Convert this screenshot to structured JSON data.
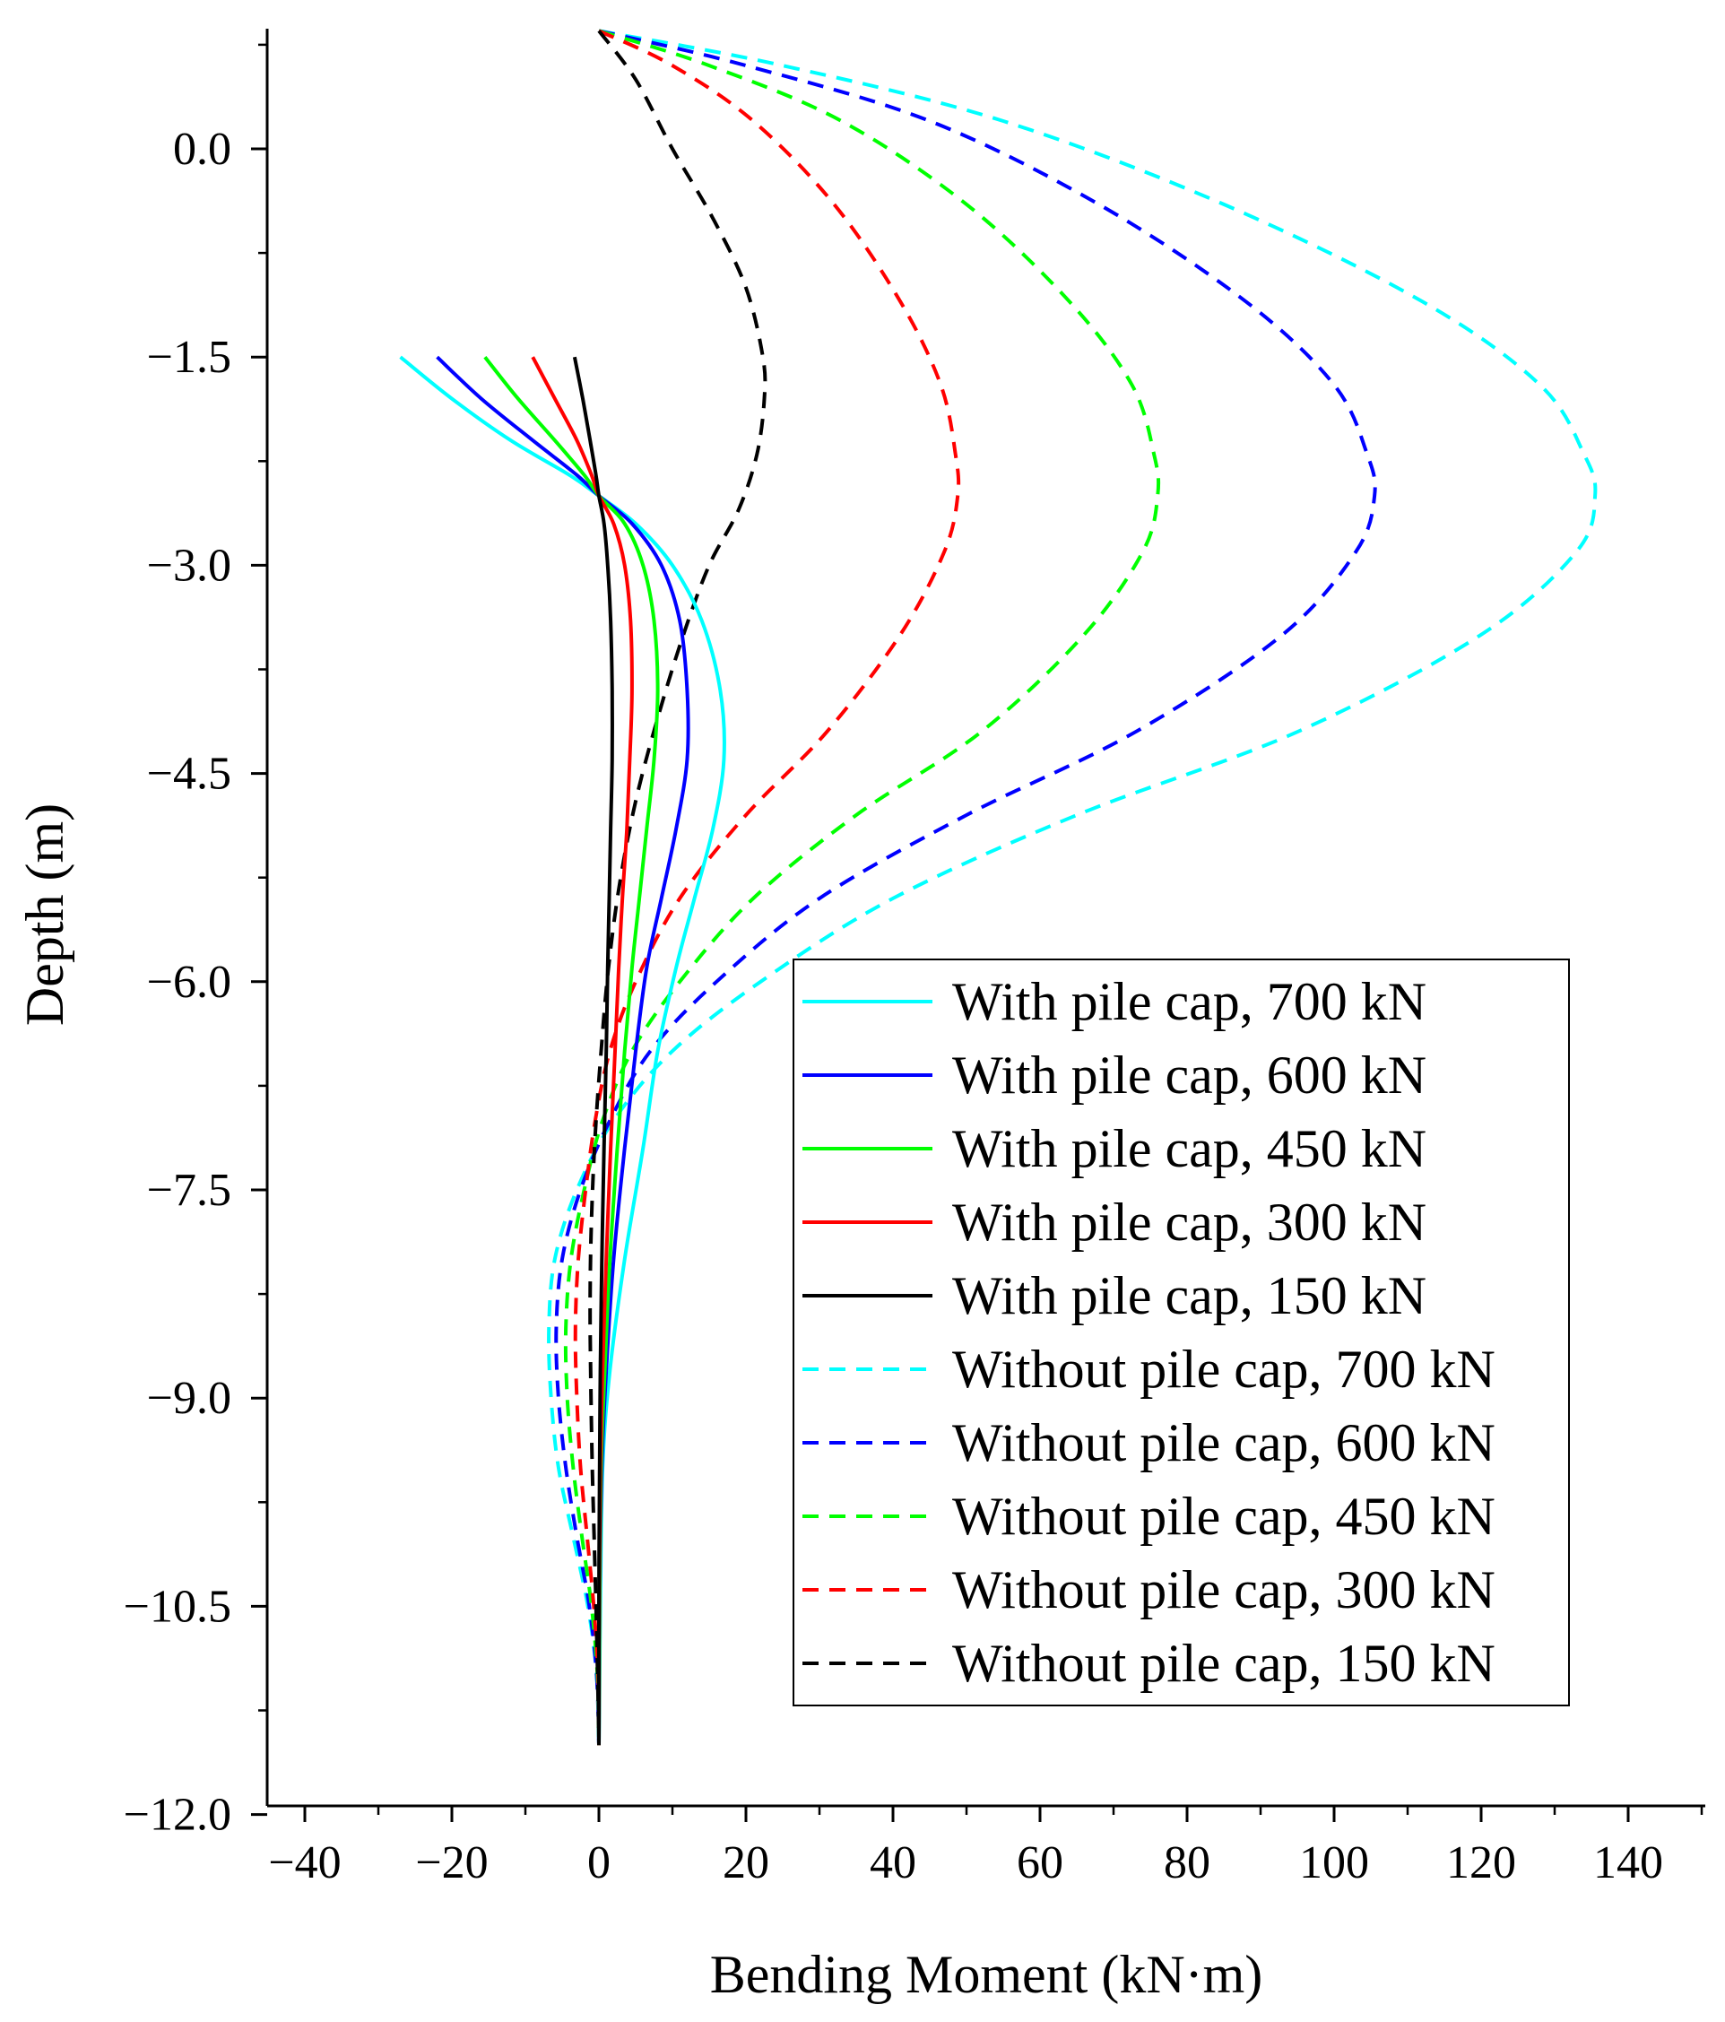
{
  "chart_data": {
    "type": "line",
    "title": "",
    "xlabel": "Bending Moment (kN·m)",
    "ylabel": "Depth (m)",
    "xlim": [
      -45,
      150
    ],
    "ylim": [
      -12.0,
      0.85
    ],
    "xticks": [
      -40,
      -20,
      0,
      20,
      40,
      60,
      80,
      100,
      120,
      140
    ],
    "xtick_labels": [
      "−40",
      "−20",
      "0",
      "20",
      "40",
      "60",
      "80",
      "100",
      "120",
      "140"
    ],
    "yticks": [
      0.0,
      -1.5,
      -3.0,
      -4.5,
      -6.0,
      -7.5,
      -9.0,
      -10.5,
      -12.0
    ],
    "ytick_labels": [
      "0.0",
      "−1.5",
      "−3.0",
      "−4.5",
      "−6.0",
      "−7.5",
      "−9.0",
      "−10.5",
      "−12.0"
    ],
    "legend_position": "bottom-right",
    "series": [
      {
        "name": "With pile cap, 700 kN",
        "color": "#00ffff",
        "dash": "solid",
        "points": [
          [
            -27,
            -1.5
          ],
          [
            -20,
            -1.8
          ],
          [
            -12,
            -2.1
          ],
          [
            -4,
            -2.35
          ],
          [
            0,
            -2.5
          ],
          [
            5,
            -2.7
          ],
          [
            10,
            -3.0
          ],
          [
            14,
            -3.4
          ],
          [
            16.5,
            -3.9
          ],
          [
            17,
            -4.4
          ],
          [
            15.5,
            -4.9
          ],
          [
            13,
            -5.4
          ],
          [
            10.5,
            -5.9
          ],
          [
            8,
            -6.5
          ],
          [
            6,
            -7.2
          ],
          [
            3.5,
            -8.0
          ],
          [
            1.5,
            -8.8
          ],
          [
            0.5,
            -9.5
          ],
          [
            0.2,
            -10.5
          ],
          [
            0,
            -11.5
          ]
        ]
      },
      {
        "name": "With pile cap, 600 kN",
        "color": "#0000ff",
        "dash": "solid",
        "points": [
          [
            -22,
            -1.5
          ],
          [
            -16,
            -1.8
          ],
          [
            -9,
            -2.1
          ],
          [
            -3,
            -2.35
          ],
          [
            0,
            -2.5
          ],
          [
            4.5,
            -2.7
          ],
          [
            8.5,
            -3.0
          ],
          [
            11,
            -3.4
          ],
          [
            12,
            -3.9
          ],
          [
            12,
            -4.4
          ],
          [
            10.5,
            -4.9
          ],
          [
            8.5,
            -5.4
          ],
          [
            6.5,
            -5.9
          ],
          [
            5,
            -6.5
          ],
          [
            3.5,
            -7.2
          ],
          [
            2,
            -8.0
          ],
          [
            1,
            -8.8
          ],
          [
            0.4,
            -9.5
          ],
          [
            0.1,
            -10.5
          ],
          [
            0,
            -11.5
          ]
        ]
      },
      {
        "name": "With pile cap, 450 kN",
        "color": "#00ff00",
        "dash": "solid",
        "points": [
          [
            -15.5,
            -1.5
          ],
          [
            -11,
            -1.8
          ],
          [
            -6,
            -2.1
          ],
          [
            -2,
            -2.35
          ],
          [
            0,
            -2.5
          ],
          [
            3.5,
            -2.7
          ],
          [
            6,
            -3.0
          ],
          [
            7.5,
            -3.4
          ],
          [
            8,
            -3.9
          ],
          [
            7.5,
            -4.4
          ],
          [
            6.5,
            -4.9
          ],
          [
            5.5,
            -5.4
          ],
          [
            4.5,
            -5.9
          ],
          [
            3.5,
            -6.5
          ],
          [
            2.5,
            -7.2
          ],
          [
            1.5,
            -8.0
          ],
          [
            0.8,
            -8.8
          ],
          [
            0.3,
            -9.5
          ],
          [
            0.1,
            -10.5
          ],
          [
            0,
            -11.5
          ]
        ]
      },
      {
        "name": "With pile cap, 300 kN",
        "color": "#ff0000",
        "dash": "solid",
        "points": [
          [
            -9,
            -1.5
          ],
          [
            -6,
            -1.8
          ],
          [
            -3,
            -2.1
          ],
          [
            -1,
            -2.35
          ],
          [
            0,
            -2.5
          ],
          [
            2,
            -2.7
          ],
          [
            3.5,
            -3.0
          ],
          [
            4.3,
            -3.4
          ],
          [
            4.5,
            -3.9
          ],
          [
            4.2,
            -4.4
          ],
          [
            3.8,
            -4.9
          ],
          [
            3.2,
            -5.4
          ],
          [
            2.7,
            -5.9
          ],
          [
            2.2,
            -6.5
          ],
          [
            1.6,
            -7.2
          ],
          [
            1,
            -8.0
          ],
          [
            0.5,
            -8.8
          ],
          [
            0.2,
            -9.5
          ],
          [
            0.05,
            -10.5
          ],
          [
            0,
            -11.5
          ]
        ]
      },
      {
        "name": "With pile cap, 150 kN",
        "color": "#000000",
        "dash": "solid",
        "points": [
          [
            -3.3,
            -1.5
          ],
          [
            -2.2,
            -1.8
          ],
          [
            -1.2,
            -2.1
          ],
          [
            -0.4,
            -2.35
          ],
          [
            0,
            -2.5
          ],
          [
            0.7,
            -2.7
          ],
          [
            1.2,
            -3.0
          ],
          [
            1.6,
            -3.4
          ],
          [
            1.8,
            -3.9
          ],
          [
            1.8,
            -4.4
          ],
          [
            1.6,
            -4.9
          ],
          [
            1.4,
            -5.4
          ],
          [
            1.2,
            -5.9
          ],
          [
            1,
            -6.5
          ],
          [
            0.7,
            -7.2
          ],
          [
            0.4,
            -8.0
          ],
          [
            0.2,
            -8.8
          ],
          [
            0.1,
            -9.5
          ],
          [
            0,
            -10.5
          ],
          [
            0,
            -11.5
          ]
        ]
      },
      {
        "name": "Without pile cap, 700 kN",
        "color": "#00ffff",
        "dash": "dashed",
        "points": [
          [
            0,
            0.85
          ],
          [
            25,
            0.6
          ],
          [
            55,
            0.2
          ],
          [
            85,
            -0.4
          ],
          [
            112,
            -1.1
          ],
          [
            128,
            -1.7
          ],
          [
            134,
            -2.2
          ],
          [
            135.5,
            -2.5
          ],
          [
            133,
            -2.9
          ],
          [
            120,
            -3.5
          ],
          [
            95,
            -4.2
          ],
          [
            65,
            -4.8
          ],
          [
            40,
            -5.4
          ],
          [
            22,
            -6.0
          ],
          [
            10,
            -6.5
          ],
          [
            2,
            -7.0
          ],
          [
            -3,
            -7.5
          ],
          [
            -6,
            -8.0
          ],
          [
            -6.8,
            -8.5
          ],
          [
            -6.5,
            -9.0
          ],
          [
            -5.5,
            -9.5
          ],
          [
            -3.5,
            -10.0
          ],
          [
            -1.5,
            -10.5
          ],
          [
            -0.3,
            -11.0
          ],
          [
            0,
            -11.5
          ]
        ]
      },
      {
        "name": "Without pile cap, 600 kN",
        "color": "#0000ff",
        "dash": "dashed",
        "points": [
          [
            0,
            0.85
          ],
          [
            20,
            0.6
          ],
          [
            45,
            0.2
          ],
          [
            68,
            -0.4
          ],
          [
            88,
            -1.1
          ],
          [
            100,
            -1.7
          ],
          [
            104.5,
            -2.2
          ],
          [
            105.5,
            -2.5
          ],
          [
            103,
            -2.9
          ],
          [
            93,
            -3.5
          ],
          [
            73,
            -4.2
          ],
          [
            50,
            -4.8
          ],
          [
            30,
            -5.4
          ],
          [
            16,
            -6.0
          ],
          [
            7,
            -6.5
          ],
          [
            1.5,
            -7.0
          ],
          [
            -2.5,
            -7.5
          ],
          [
            -5,
            -8.0
          ],
          [
            -5.8,
            -8.5
          ],
          [
            -5.5,
            -9.0
          ],
          [
            -4.5,
            -9.5
          ],
          [
            -3,
            -10.0
          ],
          [
            -1.3,
            -10.5
          ],
          [
            -0.3,
            -11.0
          ],
          [
            0,
            -11.5
          ]
        ]
      },
      {
        "name": "Without pile cap, 450 kN",
        "color": "#00ff00",
        "dash": "dashed",
        "points": [
          [
            0,
            0.85
          ],
          [
            15,
            0.6
          ],
          [
            33,
            0.2
          ],
          [
            50,
            -0.4
          ],
          [
            64,
            -1.1
          ],
          [
            72.5,
            -1.7
          ],
          [
            75.5,
            -2.2
          ],
          [
            76,
            -2.5
          ],
          [
            74,
            -2.9
          ],
          [
            66,
            -3.5
          ],
          [
            52,
            -4.2
          ],
          [
            35,
            -4.8
          ],
          [
            21,
            -5.4
          ],
          [
            11,
            -6.0
          ],
          [
            4.5,
            -6.5
          ],
          [
            0.5,
            -7.0
          ],
          [
            -2,
            -7.5
          ],
          [
            -3.8,
            -8.0
          ],
          [
            -4.5,
            -8.5
          ],
          [
            -4.3,
            -9.0
          ],
          [
            -3.5,
            -9.5
          ],
          [
            -2.3,
            -10.0
          ],
          [
            -1,
            -10.5
          ],
          [
            -0.2,
            -11.0
          ],
          [
            0,
            -11.5
          ]
        ]
      },
      {
        "name": "Without pile cap, 300 kN",
        "color": "#ff0000",
        "dash": "dashed",
        "points": [
          [
            0,
            0.85
          ],
          [
            10,
            0.6
          ],
          [
            21,
            0.2
          ],
          [
            32,
            -0.4
          ],
          [
            41,
            -1.1
          ],
          [
            46.5,
            -1.7
          ],
          [
            48.5,
            -2.2
          ],
          [
            48.8,
            -2.5
          ],
          [
            47,
            -2.9
          ],
          [
            41,
            -3.5
          ],
          [
            31,
            -4.2
          ],
          [
            20,
            -4.8
          ],
          [
            11,
            -5.4
          ],
          [
            5,
            -6.0
          ],
          [
            1.5,
            -6.5
          ],
          [
            -0.5,
            -7.0
          ],
          [
            -1.8,
            -7.5
          ],
          [
            -2.8,
            -8.0
          ],
          [
            -3.2,
            -8.5
          ],
          [
            -3,
            -9.0
          ],
          [
            -2.5,
            -9.5
          ],
          [
            -1.6,
            -10.0
          ],
          [
            -0.7,
            -10.5
          ],
          [
            -0.1,
            -11.0
          ],
          [
            0,
            -11.5
          ]
        ]
      },
      {
        "name": "Without pile cap, 150 kN",
        "color": "#000000",
        "dash": "dashed",
        "points": [
          [
            0,
            0.85
          ],
          [
            5,
            0.5
          ],
          [
            10,
            0.0
          ],
          [
            15.5,
            -0.5
          ],
          [
            20,
            -1.0
          ],
          [
            22.3,
            -1.5
          ],
          [
            22.5,
            -1.8
          ],
          [
            21.5,
            -2.2
          ],
          [
            19,
            -2.6
          ],
          [
            15,
            -3.0
          ],
          [
            11.5,
            -3.5
          ],
          [
            8,
            -4.1
          ],
          [
            5,
            -4.7
          ],
          [
            2.8,
            -5.3
          ],
          [
            1.3,
            -5.9
          ],
          [
            0.3,
            -6.5
          ],
          [
            -0.5,
            -7.1
          ],
          [
            -1,
            -7.7
          ],
          [
            -1.2,
            -8.3
          ],
          [
            -1.1,
            -8.9
          ],
          [
            -0.9,
            -9.5
          ],
          [
            -0.6,
            -10.1
          ],
          [
            -0.3,
            -10.7
          ],
          [
            -0.1,
            -11.2
          ],
          [
            0,
            -11.5
          ]
        ]
      }
    ]
  }
}
